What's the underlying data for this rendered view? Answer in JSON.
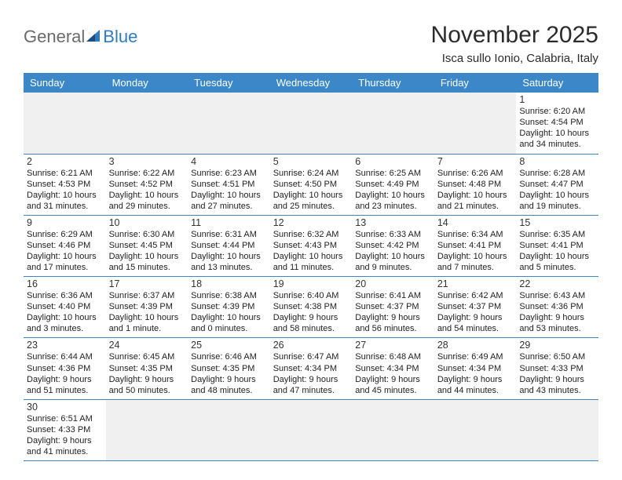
{
  "logo": {
    "text1": "General",
    "text2": "Blue"
  },
  "header": {
    "month": "November 2025",
    "location": "Isca sullo Ionio, Calabria, Italy"
  },
  "colors": {
    "header_bg": "#3b87c8",
    "header_text": "#ffffff",
    "cell_border": "#3b87c8",
    "blank_bg": "#f0f0f0",
    "logo_gray": "#6b6b6b",
    "logo_blue": "#2f7bbf"
  },
  "weekdays": [
    "Sunday",
    "Monday",
    "Tuesday",
    "Wednesday",
    "Thursday",
    "Friday",
    "Saturday"
  ],
  "days": {
    "1": {
      "sunrise": "6:20 AM",
      "sunset": "4:54 PM",
      "daylight": "10 hours and 34 minutes."
    },
    "2": {
      "sunrise": "6:21 AM",
      "sunset": "4:53 PM",
      "daylight": "10 hours and 31 minutes."
    },
    "3": {
      "sunrise": "6:22 AM",
      "sunset": "4:52 PM",
      "daylight": "10 hours and 29 minutes."
    },
    "4": {
      "sunrise": "6:23 AM",
      "sunset": "4:51 PM",
      "daylight": "10 hours and 27 minutes."
    },
    "5": {
      "sunrise": "6:24 AM",
      "sunset": "4:50 PM",
      "daylight": "10 hours and 25 minutes."
    },
    "6": {
      "sunrise": "6:25 AM",
      "sunset": "4:49 PM",
      "daylight": "10 hours and 23 minutes."
    },
    "7": {
      "sunrise": "6:26 AM",
      "sunset": "4:48 PM",
      "daylight": "10 hours and 21 minutes."
    },
    "8": {
      "sunrise": "6:28 AM",
      "sunset": "4:47 PM",
      "daylight": "10 hours and 19 minutes."
    },
    "9": {
      "sunrise": "6:29 AM",
      "sunset": "4:46 PM",
      "daylight": "10 hours and 17 minutes."
    },
    "10": {
      "sunrise": "6:30 AM",
      "sunset": "4:45 PM",
      "daylight": "10 hours and 15 minutes."
    },
    "11": {
      "sunrise": "6:31 AM",
      "sunset": "4:44 PM",
      "daylight": "10 hours and 13 minutes."
    },
    "12": {
      "sunrise": "6:32 AM",
      "sunset": "4:43 PM",
      "daylight": "10 hours and 11 minutes."
    },
    "13": {
      "sunrise": "6:33 AM",
      "sunset": "4:42 PM",
      "daylight": "10 hours and 9 minutes."
    },
    "14": {
      "sunrise": "6:34 AM",
      "sunset": "4:41 PM",
      "daylight": "10 hours and 7 minutes."
    },
    "15": {
      "sunrise": "6:35 AM",
      "sunset": "4:41 PM",
      "daylight": "10 hours and 5 minutes."
    },
    "16": {
      "sunrise": "6:36 AM",
      "sunset": "4:40 PM",
      "daylight": "10 hours and 3 minutes."
    },
    "17": {
      "sunrise": "6:37 AM",
      "sunset": "4:39 PM",
      "daylight": "10 hours and 1 minute."
    },
    "18": {
      "sunrise": "6:38 AM",
      "sunset": "4:39 PM",
      "daylight": "10 hours and 0 minutes."
    },
    "19": {
      "sunrise": "6:40 AM",
      "sunset": "4:38 PM",
      "daylight": "9 hours and 58 minutes."
    },
    "20": {
      "sunrise": "6:41 AM",
      "sunset": "4:37 PM",
      "daylight": "9 hours and 56 minutes."
    },
    "21": {
      "sunrise": "6:42 AM",
      "sunset": "4:37 PM",
      "daylight": "9 hours and 54 minutes."
    },
    "22": {
      "sunrise": "6:43 AM",
      "sunset": "4:36 PM",
      "daylight": "9 hours and 53 minutes."
    },
    "23": {
      "sunrise": "6:44 AM",
      "sunset": "4:36 PM",
      "daylight": "9 hours and 51 minutes."
    },
    "24": {
      "sunrise": "6:45 AM",
      "sunset": "4:35 PM",
      "daylight": "9 hours and 50 minutes."
    },
    "25": {
      "sunrise": "6:46 AM",
      "sunset": "4:35 PM",
      "daylight": "9 hours and 48 minutes."
    },
    "26": {
      "sunrise": "6:47 AM",
      "sunset": "4:34 PM",
      "daylight": "9 hours and 47 minutes."
    },
    "27": {
      "sunrise": "6:48 AM",
      "sunset": "4:34 PM",
      "daylight": "9 hours and 45 minutes."
    },
    "28": {
      "sunrise": "6:49 AM",
      "sunset": "4:34 PM",
      "daylight": "9 hours and 44 minutes."
    },
    "29": {
      "sunrise": "6:50 AM",
      "sunset": "4:33 PM",
      "daylight": "9 hours and 43 minutes."
    },
    "30": {
      "sunrise": "6:51 AM",
      "sunset": "4:33 PM",
      "daylight": "9 hours and 41 minutes."
    }
  },
  "labels": {
    "sunrise": "Sunrise: ",
    "sunset": "Sunset: ",
    "daylight": "Daylight: "
  },
  "layout": {
    "first_weekday_index": 6,
    "num_days": 30
  }
}
